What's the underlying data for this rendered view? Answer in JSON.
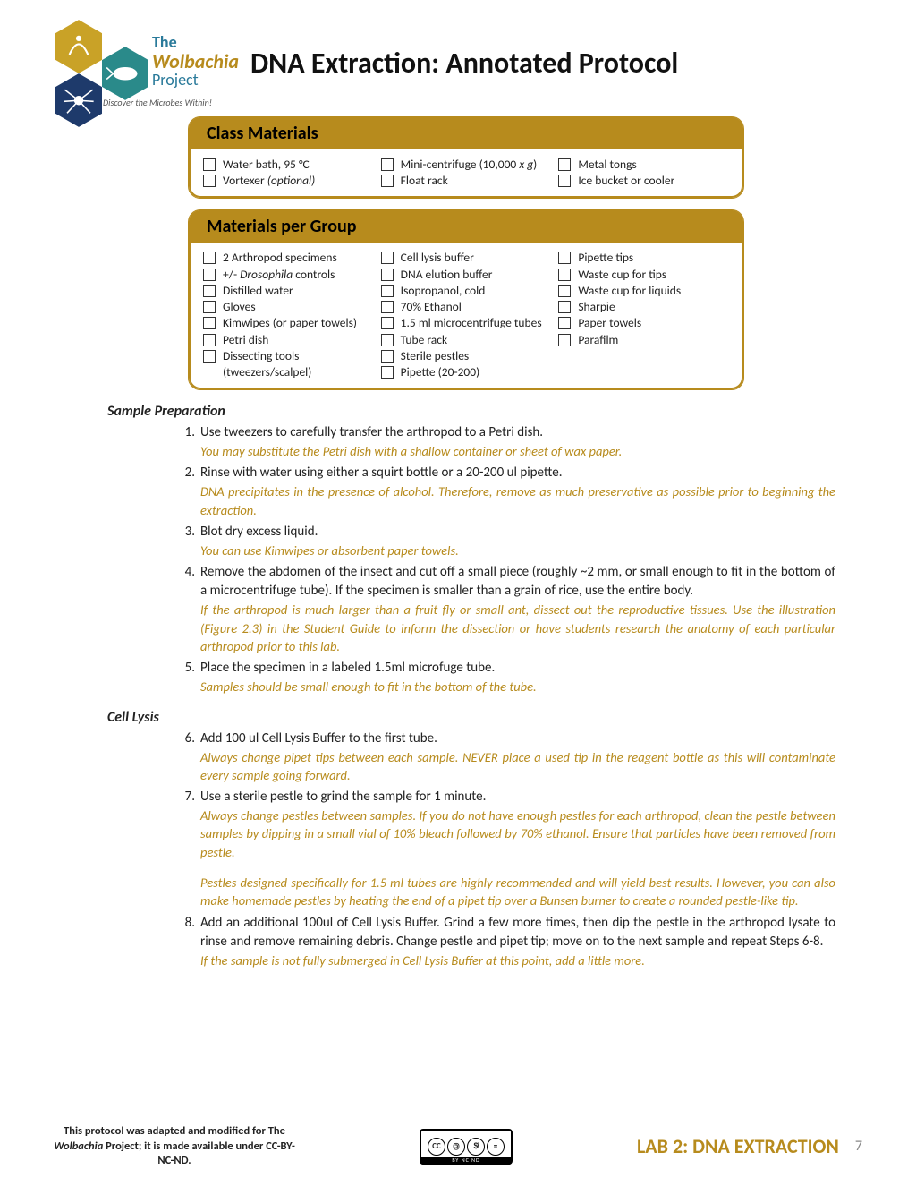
{
  "logo": {
    "line1": "The",
    "line2": "Wolbachia",
    "line3": "Project",
    "tagline": "Discover the Microbes Within!",
    "hex_colors": [
      "#c9a227",
      "#2a8a8a",
      "#1e3a6b"
    ],
    "text_color_blue": "#2a7a9a",
    "text_color_gold": "#b78b1d"
  },
  "title": "DNA Extraction: Annotated Protocol",
  "accent_color": "#b78b1d",
  "box1": {
    "header": "Class Materials",
    "cols": [
      [
        "Water bath, 95 °C",
        "Vortexer <em class='sci'>(optional)</em>"
      ],
      [
        "Mini-centrifuge (10,000 <em class='sci'>x g</em>)",
        "Float rack"
      ],
      [
        "Metal tongs",
        "Ice bucket or cooler"
      ]
    ]
  },
  "box2": {
    "header": "Materials per Group",
    "cols": [
      [
        "2 Arthropod specimens",
        "+/- <em class='sci'>Drosophila</em> controls",
        "Distilled water",
        "Gloves",
        "Kimwipes (or paper towels)",
        "Petri dish",
        "Dissecting tools (tweezers/scalpel)"
      ],
      [
        "Cell lysis buffer",
        "DNA elution buffer",
        "Isopropanol, cold",
        "70% Ethanol",
        "1.5 ml microcentrifuge tubes",
        "Tube rack",
        "Sterile pestles",
        "Pipette (20-200)"
      ],
      [
        "Pipette tips",
        "Waste cup for tips",
        "Waste cup for liquids",
        "Sharpie",
        "Paper towels",
        "Parafilm"
      ]
    ]
  },
  "sections": [
    {
      "heading": "Sample Preparation",
      "steps": [
        {
          "n": "1.",
          "t": "Use tweezers to carefully transfer the arthropod to a Petri dish.",
          "notes": [
            "You may substitute the Petri dish with a shallow container or sheet of wax paper."
          ]
        },
        {
          "n": "2.",
          "t": "Rinse with water using either a squirt bottle or a 20-200 ul pipette.",
          "notes": [
            "DNA precipitates in the presence of alcohol. Therefore, remove as much preservative as possible prior to beginning the extraction."
          ]
        },
        {
          "n": "3.",
          "t": "Blot dry excess liquid.",
          "notes": [
            "You can use Kimwipes or absorbent paper towels."
          ]
        },
        {
          "n": "4.",
          "t": "Remove the abdomen of the insect and cut off a small piece (roughly ~2 mm, or small enough to fit in the bottom of a microcentrifuge tube).  If the specimen is smaller than a grain of rice, use the entire body.",
          "notes": [
            "If the arthropod is much larger than a fruit fly or small ant, dissect out the reproductive tissues. Use the illustration (Figure 2.3) in the Student Guide to inform the dissection or have students research the anatomy of each particular arthropod prior to this lab."
          ]
        },
        {
          "n": "5.",
          "t": "Place the specimen in a labeled 1.5ml microfuge tube.",
          "notes": [
            "Samples should be small enough to fit in the bottom of the tube."
          ]
        }
      ]
    },
    {
      "heading": "Cell Lysis",
      "steps": [
        {
          "n": "6.",
          "t": "Add 100 ul Cell Lysis Buffer to the first tube.",
          "notes": [
            "Always change pipet tips between each sample. NEVER place a used tip in the reagent bottle as this will contaminate every sample going forward."
          ]
        },
        {
          "n": "7.",
          "t": "Use a sterile pestle to grind the sample for 1 minute.",
          "notes": [
            "Always change pestles between samples. If you do not have enough pestles for each arthropod, clean the pestle between samples by dipping in a small vial of 10% bleach followed by 70% ethanol. Ensure that particles have been removed from pestle.",
            "Pestles designed specifically for 1.5 ml tubes are highly recommended and will yield best results. However, you can also make homemade pestles by heating the end of a pipet tip over a Bunsen burner to create a rounded pestle-like tip."
          ]
        },
        {
          "n": "8.",
          "t": "Add an additional 100ul of Cell Lysis Buffer. Grind a few more times, then dip the pestle in the arthropod lysate to rinse and remove remaining debris. Change pestle and pipet tip; move on to the next sample and repeat Steps 6-8.",
          "notes": [
            "If the sample is not fully submerged in Cell Lysis Buffer at this point, add a little more."
          ]
        }
      ]
    }
  ],
  "footer": {
    "left_html": "This protocol was adapted and modified for The <em class='sci'>Wolbachia</em> Project; it is made available under CC-BY-NC-ND.",
    "cc_label": "BY   NC   ND",
    "lab_label": "LAB 2: DNA EXTRACTION",
    "page_num": "7"
  }
}
